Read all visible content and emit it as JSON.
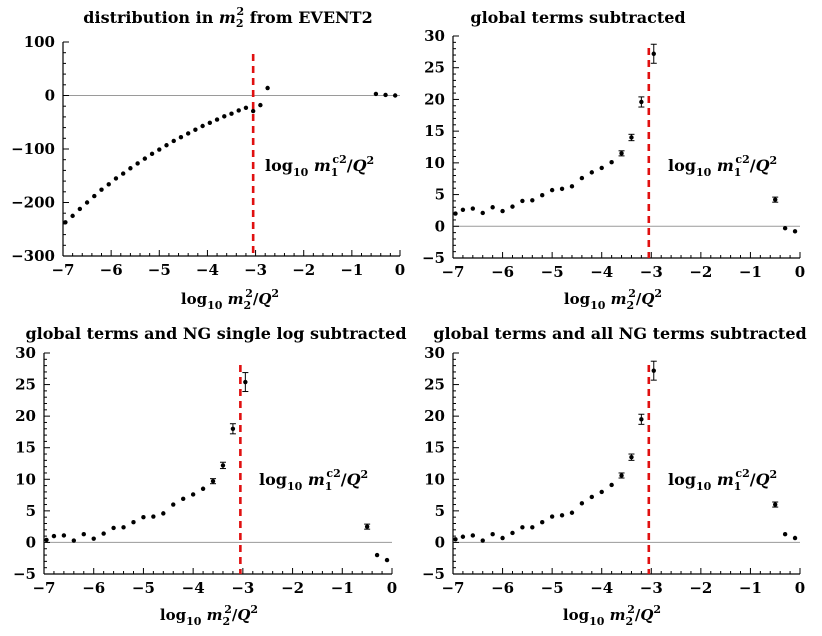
{
  "chart_data": [
    {
      "type": "scatter",
      "title": "distribution in m_2^2 from EVENT2",
      "title_parts": {
        "pre": "distribution in ",
        "var": "m",
        "sup": "2",
        "sub": "2",
        "post": " from EVENT2"
      },
      "xlabel": "log10 m_2^2/Q^2",
      "xlim": [
        -7,
        0
      ],
      "ylim": [
        -300,
        100
      ],
      "xticks": [
        -7,
        -6,
        -5,
        -4,
        -3,
        -2,
        -1,
        0
      ],
      "yticks": [
        -300,
        -200,
        -100,
        0,
        100
      ],
      "cutoff_x": -3.05,
      "annotation": "log10 m_1^c2/Q^2",
      "points": {
        "x": [
          -6.95,
          -6.8,
          -6.65,
          -6.5,
          -6.35,
          -6.2,
          -6.05,
          -5.9,
          -5.75,
          -5.6,
          -5.45,
          -5.3,
          -5.15,
          -5.0,
          -4.85,
          -4.7,
          -4.55,
          -4.4,
          -4.25,
          -4.1,
          -3.95,
          -3.8,
          -3.65,
          -3.5,
          -3.35,
          -3.2,
          -3.05,
          -2.9,
          -2.75,
          -0.5,
          -0.3,
          -0.1
        ],
        "y": [
          -237,
          -225,
          -212,
          -200,
          -188,
          -176,
          -166,
          -155,
          -146,
          -136,
          -127,
          -118,
          -109,
          -101,
          -93,
          -85,
          -78,
          -71,
          -64,
          -57,
          -51,
          -45,
          -39,
          -34,
          -28,
          -23,
          -29,
          -18,
          14,
          3,
          1,
          0
        ],
        "err": [
          2,
          2,
          2,
          2,
          2,
          2,
          2,
          2,
          2,
          2,
          2,
          2,
          2,
          2,
          2,
          2,
          2,
          2,
          2,
          2,
          2,
          2,
          2,
          2,
          2,
          2,
          2,
          2,
          4,
          2,
          2,
          1
        ]
      }
    },
    {
      "type": "scatter",
      "title": "global terms subtracted",
      "xlabel": "log10 m_2^2/Q^2",
      "xlim": [
        -7,
        0
      ],
      "ylim": [
        -5,
        30
      ],
      "xticks": [
        -7,
        -6,
        -5,
        -4,
        -3,
        -2,
        -1,
        0
      ],
      "yticks": [
        -5,
        0,
        5,
        10,
        15,
        20,
        25,
        30
      ],
      "cutoff_x": -3.05,
      "annotation": "log10 m_1^c2/Q^2",
      "points": {
        "x": [
          -6.95,
          -6.8,
          -6.6,
          -6.4,
          -6.2,
          -6.0,
          -5.8,
          -5.6,
          -5.4,
          -5.2,
          -5.0,
          -4.8,
          -4.6,
          -4.4,
          -4.2,
          -4.0,
          -3.8,
          -3.6,
          -3.4,
          -3.2,
          -2.95,
          -0.5,
          -0.3,
          -0.1
        ],
        "y": [
          2.0,
          2.6,
          2.8,
          2.1,
          3.0,
          2.4,
          3.1,
          4.0,
          4.1,
          4.9,
          5.7,
          5.9,
          6.3,
          7.6,
          8.5,
          9.2,
          10.1,
          11.5,
          14.0,
          19.6,
          27.2,
          4.2,
          -0.3,
          -0.8
        ],
        "err": [
          0.3,
          0.3,
          0.3,
          0.3,
          0.3,
          0.3,
          0.3,
          0.3,
          0.3,
          0.3,
          0.3,
          0.3,
          0.3,
          0.3,
          0.3,
          0.3,
          0.3,
          0.4,
          0.5,
          0.8,
          1.5,
          0.4,
          0.2,
          0.2
        ]
      }
    },
    {
      "type": "scatter",
      "title": "global terms and NG single log subtracted",
      "xlabel": "log10 m_2^2/Q^2",
      "xlim": [
        -7,
        0
      ],
      "ylim": [
        -5,
        30
      ],
      "xticks": [
        -7,
        -6,
        -5,
        -4,
        -3,
        -2,
        -1,
        0
      ],
      "yticks": [
        -5,
        0,
        5,
        10,
        15,
        20,
        25,
        30
      ],
      "cutoff_x": -3.05,
      "annotation": "log10 m_1^c2/Q^2",
      "points": {
        "x": [
          -6.95,
          -6.8,
          -6.6,
          -6.4,
          -6.2,
          -6.0,
          -5.8,
          -5.6,
          -5.4,
          -5.2,
          -5.0,
          -4.8,
          -4.6,
          -4.4,
          -4.2,
          -4.0,
          -3.8,
          -3.6,
          -3.4,
          -3.2,
          -2.95,
          -0.5,
          -0.3,
          -0.1
        ],
        "y": [
          0.4,
          1.0,
          1.1,
          0.3,
          1.3,
          0.6,
          1.4,
          2.3,
          2.4,
          3.2,
          4.0,
          4.1,
          4.6,
          6.0,
          6.9,
          7.6,
          8.5,
          9.7,
          12.2,
          18.0,
          25.4,
          2.5,
          -2.0,
          -2.8
        ],
        "err": [
          0.3,
          0.3,
          0.3,
          0.3,
          0.3,
          0.3,
          0.3,
          0.3,
          0.3,
          0.3,
          0.3,
          0.3,
          0.3,
          0.3,
          0.3,
          0.3,
          0.3,
          0.4,
          0.5,
          0.8,
          1.5,
          0.4,
          0.2,
          0.2
        ]
      }
    },
    {
      "type": "scatter",
      "title": "global terms and all NG terms subtracted",
      "xlabel": "log10 m_2^2/Q^2",
      "xlim": [
        -7,
        0
      ],
      "ylim": [
        -5,
        30
      ],
      "xticks": [
        -7,
        -6,
        -5,
        -4,
        -3,
        -2,
        -1,
        0
      ],
      "yticks": [
        -5,
        0,
        5,
        10,
        15,
        20,
        25,
        30
      ],
      "cutoff_x": -3.05,
      "annotation": "log10 m_1^c2/Q^2",
      "points": {
        "x": [
          -6.95,
          -6.8,
          -6.6,
          -6.4,
          -6.2,
          -6.0,
          -5.8,
          -5.6,
          -5.4,
          -5.2,
          -5.0,
          -4.8,
          -4.6,
          -4.4,
          -4.2,
          -4.0,
          -3.8,
          -3.6,
          -3.4,
          -3.2,
          -2.95,
          -0.5,
          -0.3,
          -0.1
        ],
        "y": [
          0.5,
          0.9,
          1.1,
          0.3,
          1.3,
          0.7,
          1.5,
          2.4,
          2.4,
          3.2,
          4.1,
          4.3,
          4.7,
          6.2,
          7.2,
          8.0,
          9.1,
          10.6,
          13.5,
          19.5,
          27.2,
          6.0,
          1.3,
          0.7
        ],
        "err": [
          0.3,
          0.3,
          0.3,
          0.3,
          0.3,
          0.3,
          0.3,
          0.3,
          0.3,
          0.3,
          0.3,
          0.3,
          0.3,
          0.3,
          0.3,
          0.3,
          0.3,
          0.4,
          0.5,
          0.8,
          1.5,
          0.4,
          0.2,
          0.2
        ]
      }
    }
  ]
}
